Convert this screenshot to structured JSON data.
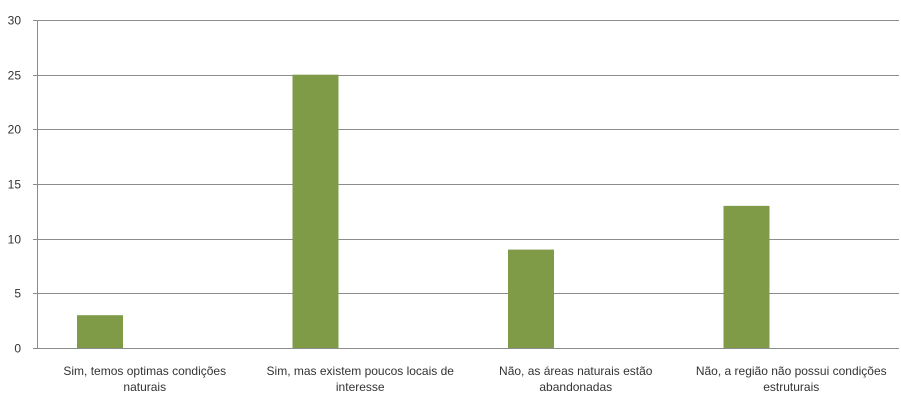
{
  "chart_data": {
    "type": "bar",
    "title": "",
    "xlabel": "",
    "ylabel": "",
    "categories": [
      [
        "Sim, temos optimas condições",
        "naturais"
      ],
      [
        "Sim, mas existem poucos locais de",
        "interesse"
      ],
      [
        "Não, as áreas naturais estão",
        "abandonadas"
      ],
      [
        "Não, a região não possui condições",
        "estruturais"
      ]
    ],
    "values": [
      3,
      25,
      9,
      13
    ],
    "ylim": [
      0,
      30
    ],
    "yticks": [
      0,
      5,
      10,
      15,
      20,
      25,
      30
    ],
    "grid": true,
    "legend": "none",
    "colors": {
      "bar": "#7f9b48",
      "grid": "#8c8c8c",
      "axis": "#8c8c8c"
    }
  }
}
